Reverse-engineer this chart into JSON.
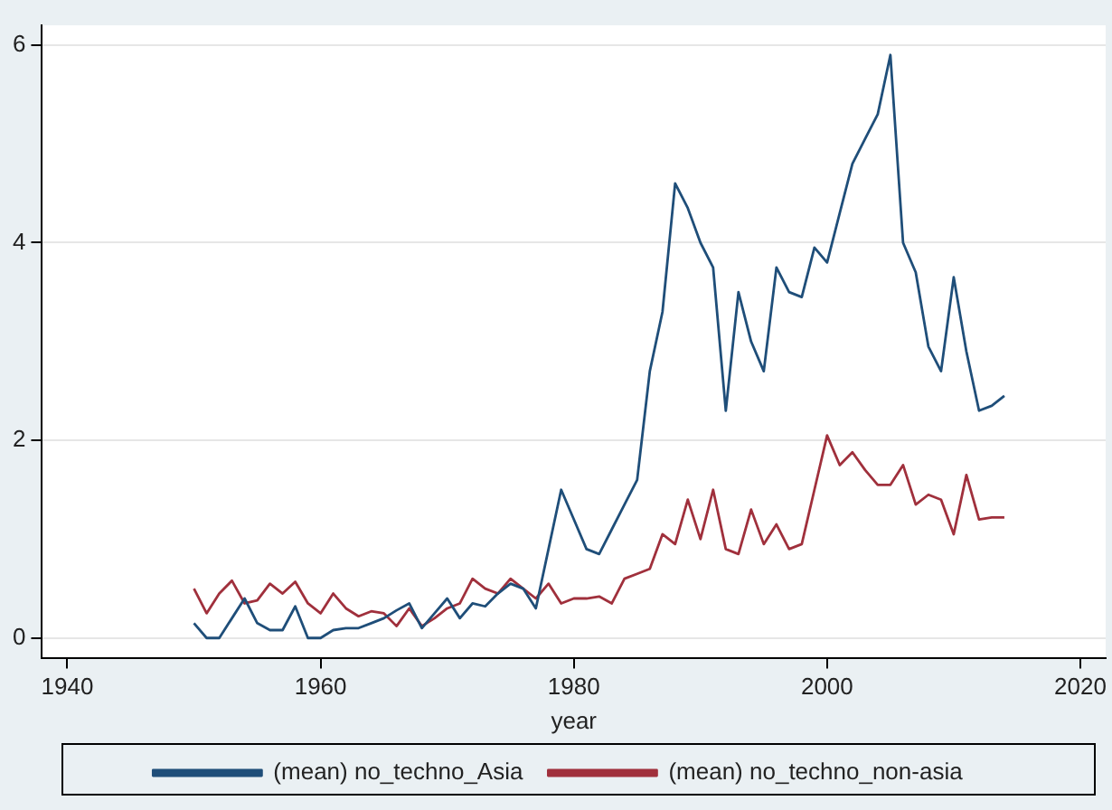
{
  "chart_data": {
    "type": "line",
    "xlabel": "year",
    "x": [
      1950,
      1951,
      1952,
      1953,
      1954,
      1955,
      1956,
      1957,
      1958,
      1959,
      1960,
      1961,
      1962,
      1963,
      1964,
      1965,
      1966,
      1967,
      1968,
      1969,
      1970,
      1971,
      1972,
      1973,
      1974,
      1975,
      1976,
      1977,
      1978,
      1979,
      1980,
      1981,
      1982,
      1983,
      1984,
      1985,
      1986,
      1987,
      1988,
      1989,
      1990,
      1991,
      1992,
      1993,
      1994,
      1995,
      1996,
      1997,
      1998,
      1999,
      2000,
      2001,
      2002,
      2003,
      2004,
      2005,
      2006,
      2007,
      2008,
      2009,
      2010,
      2011,
      2012,
      2013,
      2014
    ],
    "series": [
      {
        "name": "(mean) no_techno_Asia",
        "color": "#1f4e79",
        "values": [
          0.15,
          0.0,
          0.0,
          0.2,
          0.4,
          0.15,
          0.08,
          0.08,
          0.32,
          0.0,
          0.0,
          0.08,
          0.1,
          0.1,
          0.15,
          0.2,
          0.28,
          0.35,
          0.1,
          0.25,
          0.4,
          0.2,
          0.35,
          0.32,
          0.45,
          0.55,
          0.5,
          0.3,
          0.9,
          1.5,
          1.2,
          0.9,
          0.85,
          1.1,
          1.35,
          1.6,
          2.7,
          3.3,
          4.6,
          4.35,
          4.0,
          3.75,
          2.3,
          3.5,
          3.0,
          2.7,
          3.75,
          3.5,
          3.45,
          3.95,
          3.8,
          4.3,
          4.8,
          5.05,
          5.3,
          5.9,
          4.0,
          3.7,
          2.95,
          2.7,
          3.65,
          2.9,
          2.3,
          2.35,
          2.45
        ]
      },
      {
        "name": "(mean) no_techno_non-asia",
        "color": "#a0303c",
        "values": [
          0.5,
          0.25,
          0.45,
          0.58,
          0.35,
          0.38,
          0.55,
          0.45,
          0.57,
          0.35,
          0.25,
          0.45,
          0.3,
          0.22,
          0.27,
          0.25,
          0.12,
          0.3,
          0.12,
          0.2,
          0.3,
          0.35,
          0.6,
          0.5,
          0.45,
          0.6,
          0.5,
          0.4,
          0.55,
          0.35,
          0.4,
          0.4,
          0.42,
          0.35,
          0.6,
          0.65,
          0.7,
          1.05,
          0.95,
          1.4,
          1.0,
          1.5,
          0.9,
          0.85,
          1.3,
          0.95,
          1.15,
          0.9,
          0.95,
          1.5,
          2.05,
          1.75,
          1.88,
          1.7,
          1.55,
          1.55,
          1.75,
          1.35,
          1.45,
          1.4,
          1.05,
          1.65,
          1.2,
          1.22,
          1.22
        ]
      }
    ],
    "xlim": [
      1938,
      2022
    ],
    "xticks": [
      1940,
      1960,
      1980,
      2000,
      2020
    ],
    "ylim": [
      -0.2,
      6.2
    ],
    "yticks": [
      0,
      2,
      4,
      6
    ],
    "grid": "y",
    "legend": "bottom",
    "marker": "none",
    "line_style": "solid"
  }
}
